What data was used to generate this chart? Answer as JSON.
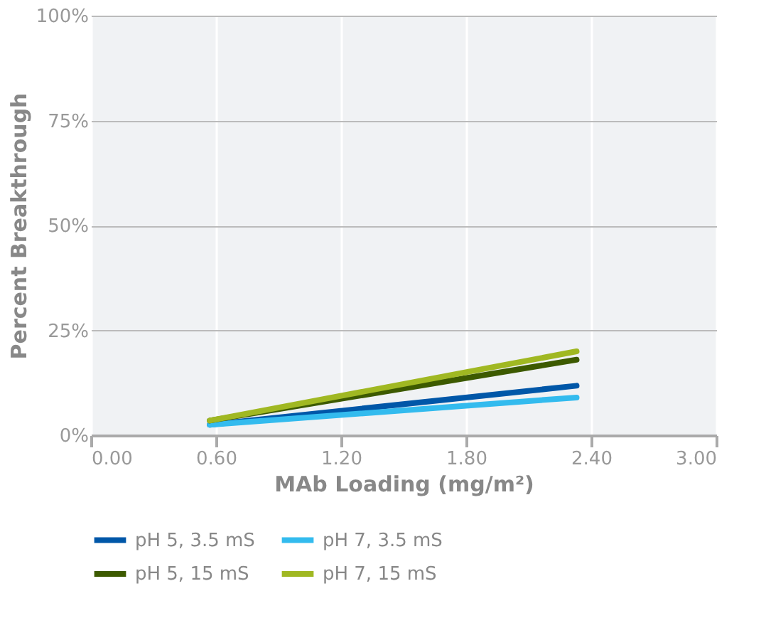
{
  "chart_data": {
    "type": "line",
    "xlabel": "MAb Loading (mg/m²)",
    "ylabel": "Percent Breakthrough",
    "x": [
      0.57,
      2.33
    ],
    "series": [
      {
        "name": "pH 5, 3.5 mS",
        "color": "#0057a8",
        "values": [
          2.5,
          11.8
        ]
      },
      {
        "name": "pH 7, 3.5 mS",
        "color": "#33bbee",
        "values": [
          2.5,
          9
        ]
      },
      {
        "name": "pH 5, 15 mS",
        "color": "#3d5a00",
        "values": [
          3.5,
          18
        ]
      },
      {
        "name": "pH 7, 15 mS",
        "color": "#a0b822",
        "values": [
          3.5,
          20
        ]
      }
    ],
    "xlim": [
      0,
      3
    ],
    "xticks": [
      {
        "value": 0,
        "label": "0.00"
      },
      {
        "value": 0.6,
        "label": "0.60"
      },
      {
        "value": 1.2,
        "label": "1.20"
      },
      {
        "value": 1.8,
        "label": "1.80"
      },
      {
        "value": 2.4,
        "label": "2.40"
      },
      {
        "value": 3,
        "label": "3.00"
      }
    ],
    "ylim": [
      0,
      100
    ],
    "yticks": [
      {
        "value": 0,
        "label": "0%"
      },
      {
        "value": 25,
        "label": "25%"
      },
      {
        "value": 50,
        "label": "50%"
      },
      {
        "value": 75,
        "label": "75%"
      },
      {
        "value": 100,
        "label": "100%"
      }
    ],
    "grid": true,
    "legend": "bottom",
    "marker": "none",
    "line_style": "solid"
  }
}
